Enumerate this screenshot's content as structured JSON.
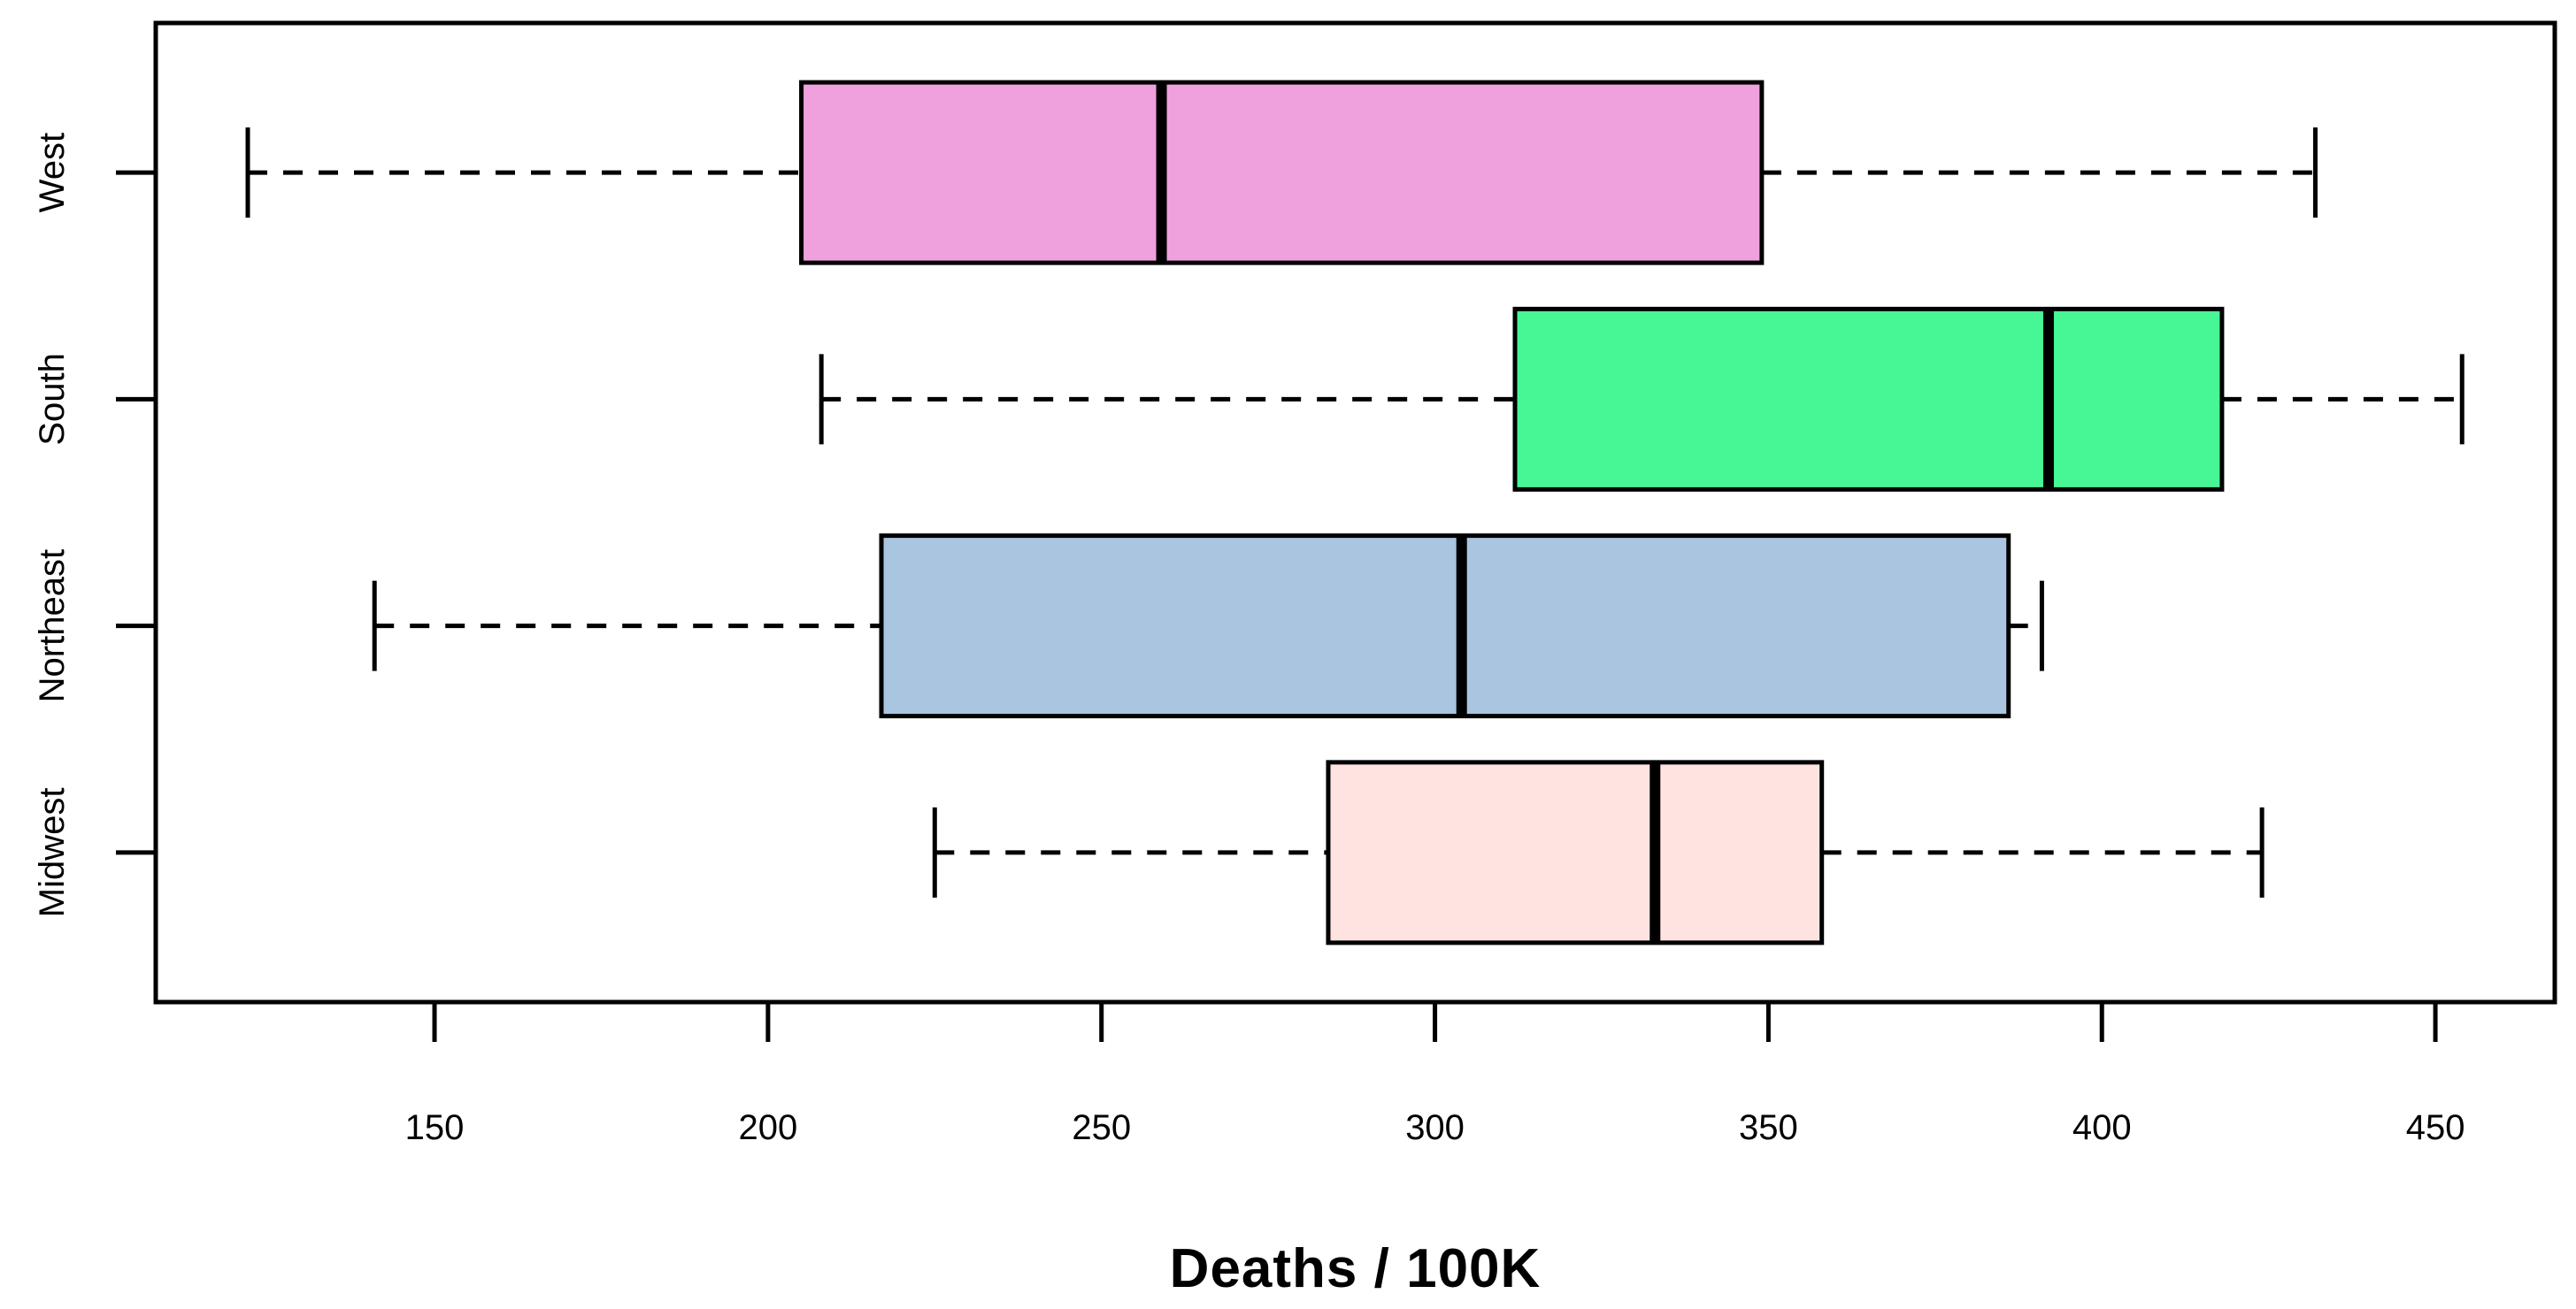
{
  "chart_data": {
    "type": "boxplot",
    "orientation": "horizontal",
    "title": "",
    "xlabel": "Deaths / 100K",
    "ylabel": "",
    "x_ticks": [
      150,
      200,
      250,
      300,
      350,
      400,
      450
    ],
    "xlim": [
      108.2,
      467.9
    ],
    "grid": false,
    "legend": "none",
    "frame_color": "#000000",
    "background_color": "#ffffff",
    "groups": [
      {
        "label": "West",
        "color": "#EFA1DD",
        "whisker_low": 122,
        "q1": 205,
        "median": 259,
        "q3": 349,
        "whisker_high": 432
      },
      {
        "label": "South",
        "color": "#47F795",
        "whisker_low": 208,
        "q1": 312,
        "median": 392,
        "q3": 418,
        "whisker_high": 454
      },
      {
        "label": "Northeast",
        "color": "#A9C5E0",
        "whisker_low": 141,
        "q1": 217,
        "median": 304,
        "q3": 386,
        "whisker_high": 391
      },
      {
        "label": "Midwest",
        "color": "#FFE3E0",
        "whisker_low": 225,
        "q1": 284,
        "median": 333,
        "q3": 358,
        "whisker_high": 424
      }
    ]
  }
}
